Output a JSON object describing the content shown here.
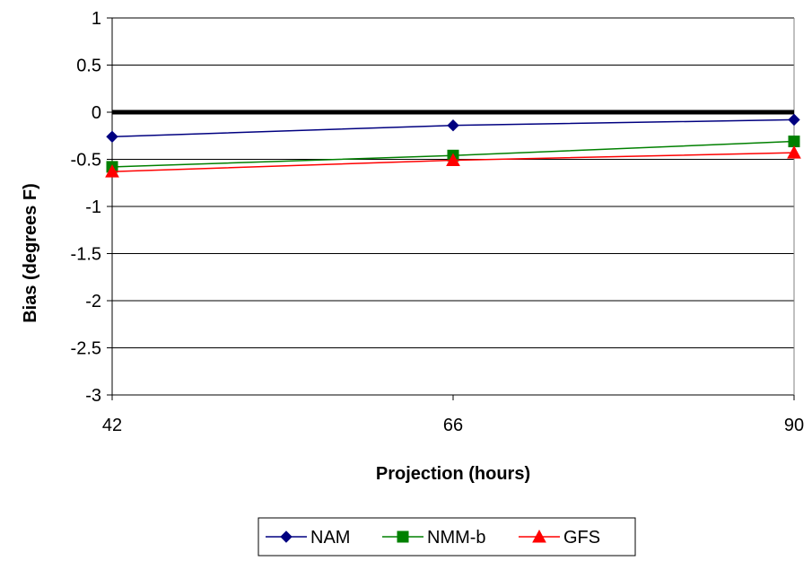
{
  "chart_data": {
    "type": "line",
    "x": [
      42,
      66,
      90
    ],
    "xlabel": "Projection (hours)",
    "ylabel": "Bias (degrees F)",
    "ylim": [
      -3,
      1
    ],
    "yticks": [
      1,
      0.5,
      0,
      -0.5,
      -1,
      -1.5,
      -2,
      -2.5,
      -3
    ],
    "ytick_labels": [
      "1",
      "0.5",
      "0",
      "-0.5",
      "-1",
      "-1.5",
      "-2",
      "-2.5",
      "-3"
    ],
    "xtick_labels": [
      "42",
      "66",
      "90"
    ],
    "grid": true,
    "zero_line": true,
    "legend_position": "bottom",
    "series": [
      {
        "name": "NAM",
        "values": [
          -0.26,
          -0.14,
          -0.08
        ],
        "color": "#000080",
        "marker": "diamond"
      },
      {
        "name": "NMM-b",
        "values": [
          -0.58,
          -0.46,
          -0.31
        ],
        "color": "#008000",
        "marker": "square"
      },
      {
        "name": "GFS",
        "values": [
          -0.63,
          -0.51,
          -0.43
        ],
        "color": "#ff0000",
        "marker": "triangle"
      }
    ]
  }
}
